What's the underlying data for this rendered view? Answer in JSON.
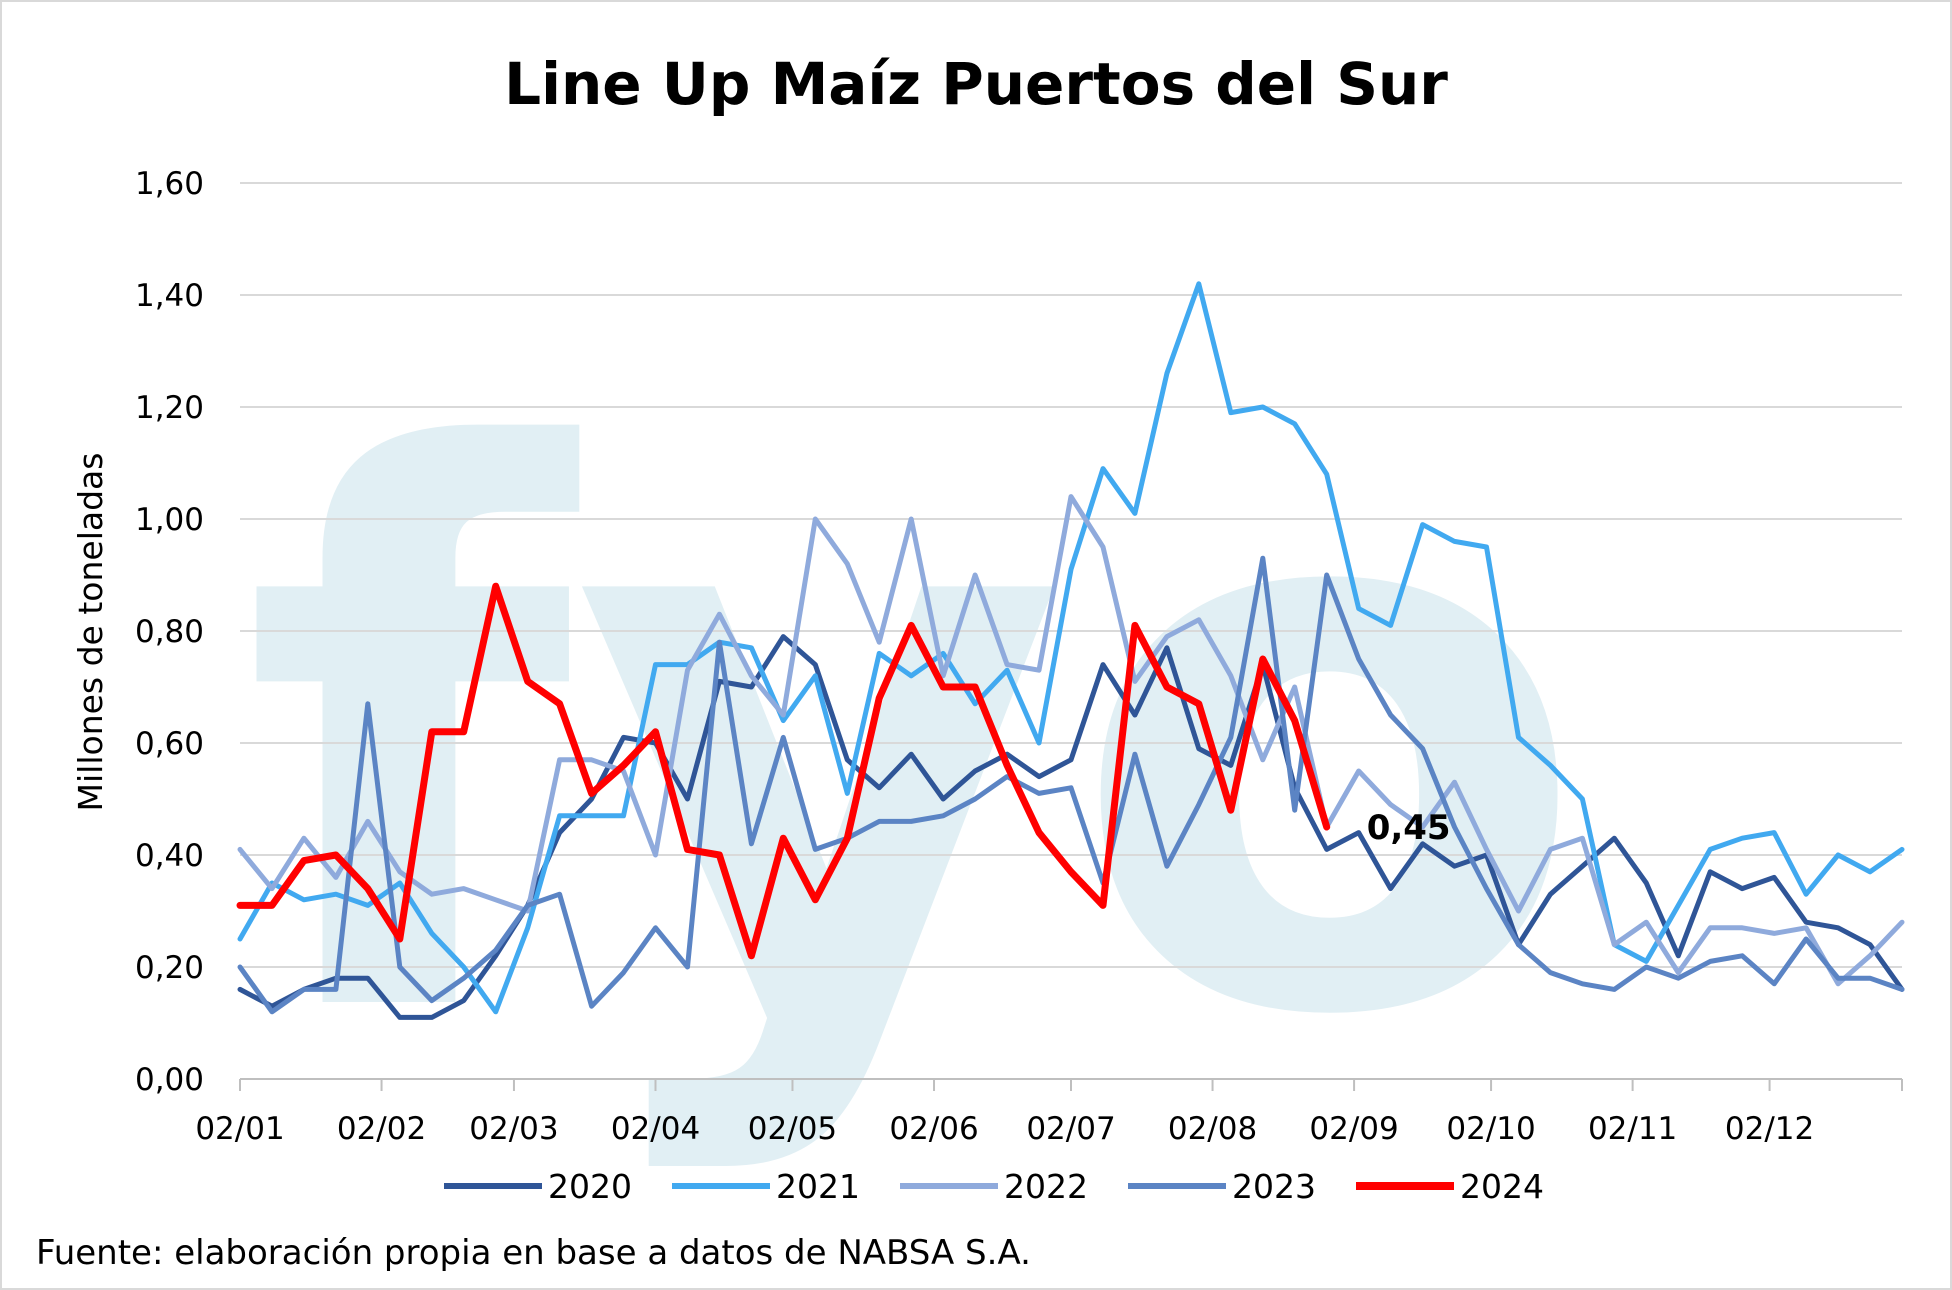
{
  "chart_data": {
    "type": "line",
    "title": "Line Up Maíz Puertos del Sur",
    "ylabel": "Millones de toneladas",
    "xlabel": "",
    "ylim": [
      0,
      1.6
    ],
    "y_ticks": [
      0,
      0.2,
      0.4,
      0.6,
      0.8,
      1.0,
      1.2,
      1.4,
      1.6
    ],
    "y_tick_labels": [
      "0,00",
      "0,20",
      "0,40",
      "0,60",
      "0,80",
      "1,00",
      "1,20",
      "1,40",
      "1,60"
    ],
    "x_tick_labels": [
      "02/01",
      "02/02",
      "02/03",
      "02/04",
      "02/05",
      "02/06",
      "02/07",
      "02/08",
      "02/09",
      "02/10",
      "02/11",
      "02/12"
    ],
    "x_start": "2024-01-02",
    "x_end": "2024-12-31",
    "grid": true,
    "legend_position": "bottom",
    "watermark": "fyo",
    "annotation": {
      "text": "0,45",
      "series": "2024"
    },
    "series": [
      {
        "name": "2020",
        "color": "#2f5597",
        "width": 5,
        "x": [
          "2024-01-02",
          "2024-01-09",
          "2024-01-16",
          "2024-01-23",
          "2024-01-30",
          "2024-02-06",
          "2024-02-13",
          "2024-02-20",
          "2024-02-27",
          "2024-03-05",
          "2024-03-12",
          "2024-03-19",
          "2024-03-26",
          "2024-04-02",
          "2024-04-09",
          "2024-04-16",
          "2024-04-23",
          "2024-04-30",
          "2024-05-07",
          "2024-05-14",
          "2024-05-21",
          "2024-05-28",
          "2024-06-04",
          "2024-06-11",
          "2024-06-18",
          "2024-06-25",
          "2024-07-02",
          "2024-07-09",
          "2024-07-16",
          "2024-07-23",
          "2024-07-30",
          "2024-08-06",
          "2024-08-13",
          "2024-08-20",
          "2024-08-27",
          "2024-09-03",
          "2024-09-10",
          "2024-09-17",
          "2024-09-24",
          "2024-10-01",
          "2024-10-08",
          "2024-10-15",
          "2024-10-22",
          "2024-10-29",
          "2024-11-05",
          "2024-11-12",
          "2024-11-19",
          "2024-11-26",
          "2024-12-03",
          "2024-12-10",
          "2024-12-17",
          "2024-12-24",
          "2024-12-31"
        ],
        "values": [
          0.16,
          0.13,
          0.16,
          0.18,
          0.18,
          0.11,
          0.11,
          0.14,
          0.22,
          0.31,
          0.44,
          0.5,
          0.61,
          0.6,
          0.5,
          0.71,
          0.7,
          0.79,
          0.74,
          0.57,
          0.52,
          0.58,
          0.5,
          0.55,
          0.58,
          0.54,
          0.57,
          0.74,
          0.65,
          0.77,
          0.59,
          0.56,
          0.74,
          0.52,
          0.41,
          0.44,
          0.34,
          0.42,
          0.38,
          0.4,
          0.24,
          0.33,
          0.38,
          0.43,
          0.35,
          0.22,
          0.37,
          0.34,
          0.36,
          0.28,
          0.27,
          0.24,
          0.16
        ]
      },
      {
        "name": "2021",
        "color": "#41a9f0",
        "width": 5,
        "x": [
          "2024-01-02",
          "2024-01-09",
          "2024-01-16",
          "2024-01-23",
          "2024-01-30",
          "2024-02-06",
          "2024-02-13",
          "2024-02-20",
          "2024-02-27",
          "2024-03-05",
          "2024-03-12",
          "2024-03-19",
          "2024-03-26",
          "2024-04-02",
          "2024-04-09",
          "2024-04-16",
          "2024-04-23",
          "2024-04-30",
          "2024-05-07",
          "2024-05-14",
          "2024-05-21",
          "2024-05-28",
          "2024-06-04",
          "2024-06-11",
          "2024-06-18",
          "2024-06-25",
          "2024-07-02",
          "2024-07-09",
          "2024-07-16",
          "2024-07-23",
          "2024-07-30",
          "2024-08-06",
          "2024-08-13",
          "2024-08-20",
          "2024-08-27",
          "2024-09-03",
          "2024-09-10",
          "2024-09-17",
          "2024-09-24",
          "2024-10-01",
          "2024-10-08",
          "2024-10-15",
          "2024-10-22",
          "2024-10-29",
          "2024-11-05",
          "2024-11-12",
          "2024-11-19",
          "2024-11-26",
          "2024-12-03",
          "2024-12-10",
          "2024-12-17",
          "2024-12-24",
          "2024-12-31"
        ],
        "values": [
          0.25,
          0.35,
          0.32,
          0.33,
          0.31,
          0.35,
          0.26,
          0.2,
          0.12,
          0.27,
          0.47,
          0.47,
          0.47,
          0.74,
          0.74,
          0.78,
          0.77,
          0.64,
          0.72,
          0.51,
          0.76,
          0.72,
          0.76,
          0.67,
          0.73,
          0.6,
          0.91,
          1.09,
          1.01,
          1.26,
          1.42,
          1.19,
          1.2,
          1.17,
          1.08,
          0.84,
          0.81,
          0.99,
          0.96,
          0.95,
          0.61,
          0.56,
          0.5,
          0.24,
          0.21,
          0.31,
          0.41,
          0.43,
          0.44,
          0.33,
          0.4,
          0.37,
          0.41
        ]
      },
      {
        "name": "2022",
        "color": "#8faadc",
        "width": 5,
        "x": [
          "2024-01-02",
          "2024-01-09",
          "2024-01-16",
          "2024-01-23",
          "2024-01-30",
          "2024-02-06",
          "2024-02-13",
          "2024-02-20",
          "2024-02-27",
          "2024-03-05",
          "2024-03-12",
          "2024-03-19",
          "2024-03-26",
          "2024-04-02",
          "2024-04-09",
          "2024-04-16",
          "2024-04-23",
          "2024-04-30",
          "2024-05-07",
          "2024-05-14",
          "2024-05-21",
          "2024-05-28",
          "2024-06-04",
          "2024-06-11",
          "2024-06-18",
          "2024-06-25",
          "2024-07-02",
          "2024-07-09",
          "2024-07-16",
          "2024-07-23",
          "2024-07-30",
          "2024-08-06",
          "2024-08-13",
          "2024-08-20",
          "2024-08-27",
          "2024-09-03",
          "2024-09-10",
          "2024-09-17",
          "2024-09-24",
          "2024-10-01",
          "2024-10-08",
          "2024-10-15",
          "2024-10-22",
          "2024-10-29",
          "2024-11-05",
          "2024-11-12",
          "2024-11-19",
          "2024-11-26",
          "2024-12-03",
          "2024-12-10",
          "2024-12-17",
          "2024-12-24",
          "2024-12-31"
        ],
        "values": [
          0.41,
          0.34,
          0.43,
          0.36,
          0.46,
          0.37,
          0.33,
          0.34,
          0.32,
          0.3,
          0.57,
          0.57,
          0.55,
          0.4,
          0.73,
          0.83,
          0.72,
          0.65,
          1.0,
          0.92,
          0.78,
          1.0,
          0.72,
          0.9,
          0.74,
          0.73,
          1.04,
          0.95,
          0.71,
          0.79,
          0.82,
          0.72,
          0.57,
          0.7,
          0.45,
          0.55,
          0.49,
          0.45,
          0.53,
          0.41,
          0.3,
          0.41,
          0.43,
          0.24,
          0.28,
          0.19,
          0.27,
          0.27,
          0.26,
          0.27,
          0.17,
          0.22,
          0.28
        ]
      },
      {
        "name": "2023",
        "color": "#5b84c4",
        "width": 5,
        "x": [
          "2024-01-02",
          "2024-01-09",
          "2024-01-16",
          "2024-01-23",
          "2024-01-30",
          "2024-02-06",
          "2024-02-13",
          "2024-02-20",
          "2024-02-27",
          "2024-03-05",
          "2024-03-12",
          "2024-03-19",
          "2024-03-26",
          "2024-04-02",
          "2024-04-09",
          "2024-04-16",
          "2024-04-23",
          "2024-04-30",
          "2024-05-07",
          "2024-05-14",
          "2024-05-21",
          "2024-05-28",
          "2024-06-04",
          "2024-06-11",
          "2024-06-18",
          "2024-06-25",
          "2024-07-02",
          "2024-07-09",
          "2024-07-16",
          "2024-07-23",
          "2024-07-30",
          "2024-08-06",
          "2024-08-13",
          "2024-08-20",
          "2024-08-27",
          "2024-09-03",
          "2024-09-10",
          "2024-09-17",
          "2024-09-24",
          "2024-10-01",
          "2024-10-08",
          "2024-10-15",
          "2024-10-22",
          "2024-10-29",
          "2024-11-05",
          "2024-11-12",
          "2024-11-19",
          "2024-11-26",
          "2024-12-03",
          "2024-12-10",
          "2024-12-17",
          "2024-12-24",
          "2024-12-31"
        ],
        "values": [
          0.2,
          0.12,
          0.16,
          0.16,
          0.67,
          0.2,
          0.14,
          0.18,
          0.23,
          0.31,
          0.33,
          0.13,
          0.19,
          0.27,
          0.2,
          0.78,
          0.42,
          0.61,
          0.41,
          0.43,
          0.46,
          0.46,
          0.47,
          0.5,
          0.54,
          0.51,
          0.52,
          0.35,
          0.58,
          0.38,
          0.49,
          0.61,
          0.93,
          0.48,
          0.9,
          0.75,
          0.65,
          0.59,
          0.45,
          0.34,
          0.24,
          0.19,
          0.17,
          0.16,
          0.2,
          0.18,
          0.21,
          0.22,
          0.17,
          0.25,
          0.18,
          0.18,
          0.16
        ]
      },
      {
        "name": "2024",
        "color": "#ff0000",
        "width": 7,
        "x": [
          "2024-01-02",
          "2024-01-09",
          "2024-01-16",
          "2024-01-23",
          "2024-01-30",
          "2024-02-06",
          "2024-02-13",
          "2024-02-20",
          "2024-02-27",
          "2024-03-05",
          "2024-03-12",
          "2024-03-19",
          "2024-03-26",
          "2024-04-02",
          "2024-04-09",
          "2024-04-16",
          "2024-04-23",
          "2024-04-30",
          "2024-05-07",
          "2024-05-14",
          "2024-05-21",
          "2024-05-28",
          "2024-06-04",
          "2024-06-11",
          "2024-06-18",
          "2024-06-25",
          "2024-07-02",
          "2024-07-09",
          "2024-07-16",
          "2024-07-23",
          "2024-07-30",
          "2024-08-06",
          "2024-08-13",
          "2024-08-20",
          "2024-08-27"
        ],
        "values": [
          0.31,
          0.31,
          0.39,
          0.4,
          0.34,
          0.25,
          0.62,
          0.62,
          0.88,
          0.71,
          0.67,
          0.51,
          0.56,
          0.62,
          0.41,
          0.4,
          0.22,
          0.43,
          0.32,
          0.43,
          0.68,
          0.81,
          0.7,
          0.7,
          0.56,
          0.44,
          0.37,
          0.31,
          0.81,
          0.7,
          0.67,
          0.48,
          0.75,
          0.64,
          0.45
        ]
      }
    ]
  },
  "source_text": "Fuente: elaboración propia en base a datos de NABSA S.A."
}
